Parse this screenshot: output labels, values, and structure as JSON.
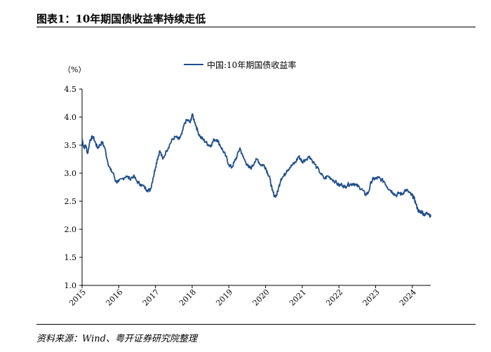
{
  "figure_title": "图表1：10年期国债收益率持续走低",
  "source": "资料来源：Wind、粤开证券研究院整理",
  "chart_data": {
    "type": "line",
    "unit_label": "（%）",
    "ylim": [
      1.0,
      4.5
    ],
    "yticks": [
      "1.0",
      "1.5",
      "2.0",
      "2.5",
      "3.0",
      "3.5",
      "4.0",
      "4.5"
    ],
    "xlim": [
      2015.0,
      2024.5
    ],
    "xticks": [
      "2015",
      "2016",
      "2017",
      "2018",
      "2019",
      "2020",
      "2021",
      "2022",
      "2023",
      "2024"
    ],
    "grid": false,
    "legend_position": "top-center",
    "color": "#1f4e8c",
    "series": [
      {
        "name": "中国:10年期国债收益率",
        "x": [
          2015.0,
          2015.05,
          2015.1,
          2015.15,
          2015.22,
          2015.3,
          2015.36,
          2015.42,
          2015.48,
          2015.55,
          2015.62,
          2015.7,
          2015.78,
          2015.85,
          2015.92,
          2016.0,
          2016.1,
          2016.2,
          2016.3,
          2016.4,
          2016.5,
          2016.6,
          2016.7,
          2016.78,
          2016.86,
          2016.93,
          2017.0,
          2017.05,
          2017.12,
          2017.2,
          2017.3,
          2017.38,
          2017.46,
          2017.55,
          2017.64,
          2017.72,
          2017.8,
          2017.87,
          2017.95,
          2018.0,
          2018.08,
          2018.15,
          2018.22,
          2018.3,
          2018.38,
          2018.45,
          2018.52,
          2018.6,
          2018.68,
          2018.76,
          2018.84,
          2018.92,
          2019.0,
          2019.08,
          2019.15,
          2019.22,
          2019.3,
          2019.38,
          2019.46,
          2019.54,
          2019.62,
          2019.7,
          2019.78,
          2019.86,
          2019.94,
          2020.0,
          2020.06,
          2020.12,
          2020.18,
          2020.24,
          2020.3,
          2020.36,
          2020.42,
          2020.5,
          2020.58,
          2020.66,
          2020.74,
          2020.82,
          2020.9,
          2020.96,
          2021.0,
          2021.1,
          2021.2,
          2021.3,
          2021.4,
          2021.5,
          2021.6,
          2021.7,
          2021.8,
          2021.9,
          2022.0,
          2022.08,
          2022.16,
          2022.24,
          2022.32,
          2022.4,
          2022.48,
          2022.56,
          2022.64,
          2022.72,
          2022.8,
          2022.88,
          2022.94,
          2023.0,
          2023.08,
          2023.16,
          2023.24,
          2023.32,
          2023.4,
          2023.48,
          2023.56,
          2023.64,
          2023.72,
          2023.8,
          2023.88,
          2023.96,
          2024.0,
          2024.05,
          2024.1,
          2024.15,
          2024.2,
          2024.25,
          2024.3,
          2024.35,
          2024.4,
          2024.45,
          2024.5
        ],
        "values": [
          3.62,
          3.45,
          3.5,
          3.35,
          3.6,
          3.65,
          3.55,
          3.45,
          3.5,
          3.55,
          3.45,
          3.2,
          3.05,
          3.0,
          2.85,
          2.85,
          2.9,
          2.95,
          2.9,
          2.95,
          2.85,
          2.8,
          2.75,
          2.7,
          2.7,
          2.9,
          3.1,
          3.25,
          3.4,
          3.25,
          3.4,
          3.5,
          3.6,
          3.65,
          3.6,
          3.7,
          3.9,
          3.95,
          3.9,
          4.05,
          3.9,
          3.75,
          3.65,
          3.6,
          3.55,
          3.5,
          3.5,
          3.6,
          3.6,
          3.5,
          3.4,
          3.3,
          3.15,
          3.1,
          3.2,
          3.3,
          3.45,
          3.3,
          3.2,
          3.1,
          3.1,
          3.2,
          3.25,
          3.15,
          3.15,
          3.1,
          3.0,
          2.9,
          2.7,
          2.6,
          2.6,
          2.75,
          2.9,
          2.95,
          3.05,
          3.1,
          3.15,
          3.2,
          3.3,
          3.25,
          3.2,
          3.25,
          3.3,
          3.2,
          3.1,
          3.0,
          2.9,
          2.95,
          2.9,
          2.85,
          2.78,
          2.8,
          2.75,
          2.8,
          2.8,
          2.82,
          2.78,
          2.75,
          2.7,
          2.62,
          2.65,
          2.85,
          2.9,
          2.9,
          2.92,
          2.88,
          2.85,
          2.75,
          2.7,
          2.65,
          2.6,
          2.65,
          2.62,
          2.7,
          2.68,
          2.62,
          2.6,
          2.55,
          2.45,
          2.35,
          2.3,
          2.32,
          2.28,
          2.25,
          2.3,
          2.28,
          2.22
        ]
      }
    ]
  }
}
